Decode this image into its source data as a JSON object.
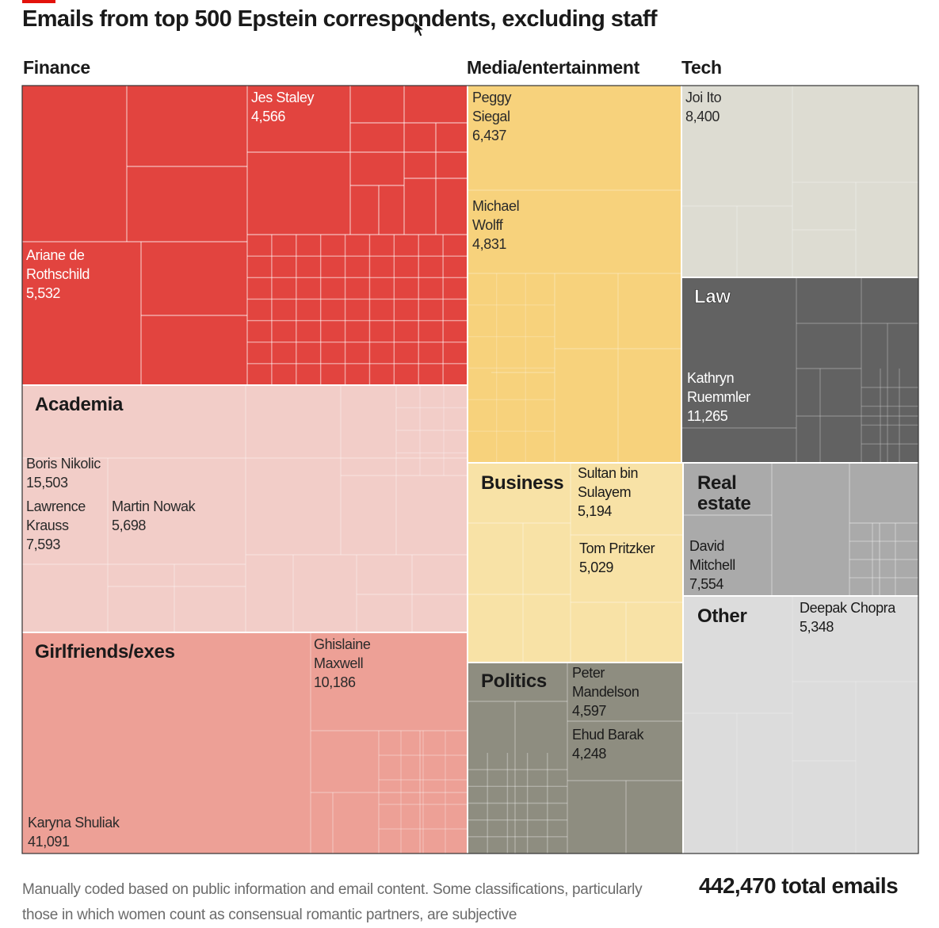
{
  "title": "Emails from top 500 Epstein correspondents, excluding staff",
  "group_headings": {
    "finance": "Finance",
    "media": "Media/entertainment",
    "tech": "Tech"
  },
  "colors": {
    "Finance": "#e2443f",
    "Academia": "#f2cdc8",
    "Girlfriends/exes": "#eda096",
    "Media/entertainment": "#f7d27c",
    "Business": "#f8e2a6",
    "Politics": "#8e8d80",
    "Tech": "#dddcd2",
    "Law": "#626262",
    "Real estate": "#aaaaaa",
    "Other": "#dcdcdc"
  },
  "chart_data": {
    "type": "treemap",
    "title": "Emails from top 500 Epstein correspondents, excluding staff",
    "total_label": "442,470 total emails",
    "categories": [
      {
        "name": "Finance",
        "highlighted": [
          {
            "name": "Jes Staley",
            "value": 4566
          },
          {
            "name": "Ariane de Rothschild",
            "value": 5532
          }
        ]
      },
      {
        "name": "Academia",
        "highlighted": [
          {
            "name": "Boris Nikolic",
            "value": 15503
          },
          {
            "name": "Lawrence Krauss",
            "value": 7593
          },
          {
            "name": "Martin Nowak",
            "value": 5698
          }
        ]
      },
      {
        "name": "Girlfriends/exes",
        "highlighted": [
          {
            "name": "Ghislaine Maxwell",
            "value": 10186
          },
          {
            "name": "Karyna Shuliak",
            "value": 41091
          }
        ]
      },
      {
        "name": "Media/entertainment",
        "highlighted": [
          {
            "name": "Peggy Siegal",
            "value": 6437
          },
          {
            "name": "Michael Wolff",
            "value": 4831
          }
        ]
      },
      {
        "name": "Business",
        "highlighted": [
          {
            "name": "Sultan bin Sulayem",
            "value": 5194
          },
          {
            "name": "Tom Pritzker",
            "value": 5029
          }
        ]
      },
      {
        "name": "Politics",
        "highlighted": [
          {
            "name": "Peter Mandelson",
            "value": 4597
          },
          {
            "name": "Ehud Barak",
            "value": 4248
          }
        ]
      },
      {
        "name": "Tech",
        "highlighted": [
          {
            "name": "Joi Ito",
            "value": 8400
          }
        ]
      },
      {
        "name": "Law",
        "highlighted": [
          {
            "name": "Kathryn Ruemmler",
            "value": 11265
          }
        ]
      },
      {
        "name": "Real estate",
        "highlighted": [
          {
            "name": "David Mitchell",
            "value": 7554
          }
        ]
      },
      {
        "name": "Other",
        "highlighted": [
          {
            "name": "Deepak Chopra",
            "value": 5348
          }
        ]
      }
    ],
    "category_labels": {
      "academia": "Academia",
      "girlfriends": "Girlfriends/exes",
      "business": "Business",
      "politics": "Politics",
      "law": "Law",
      "real_estate": [
        "Real",
        "estate"
      ],
      "other": "Other"
    },
    "person_labels": {
      "staley": [
        "Jes Staley",
        "4,566"
      ],
      "rothschild": [
        "Ariane de",
        "Rothschild",
        "5,532"
      ],
      "nikolic": [
        "Boris Nikolic",
        "15,503"
      ],
      "krauss": [
        "Lawrence",
        "Krauss",
        "7,593"
      ],
      "nowak": [
        "Martin Nowak",
        "5,698"
      ],
      "maxwell": [
        "Ghislaine",
        "Maxwell",
        "10,186"
      ],
      "shuliak": [
        "Karyna Shuliak",
        "41,091"
      ],
      "siegal": [
        "Peggy",
        "Siegal",
        "6,437"
      ],
      "wolff": [
        "Michael",
        "Wolff",
        "4,831"
      ],
      "sulayem": [
        "Sultan bin",
        "Sulayem",
        "5,194"
      ],
      "pritzker": [
        "Tom Pritzker",
        "5,029"
      ],
      "mandelson": [
        "Peter",
        "Mandelson",
        "4,597"
      ],
      "barak": [
        "Ehud Barak",
        "4,248"
      ],
      "ito": [
        "Joi Ito",
        "8,400"
      ],
      "ruemmler": [
        "Kathryn",
        "Ruemmler",
        "11,265"
      ],
      "mitchell": [
        "David",
        "Mitchell",
        "7,554"
      ],
      "chopra": [
        "Deepak Chopra",
        "5,348"
      ]
    }
  },
  "footnote": "Manually coded based on public information and email content. Some classifications, particularly those in which women count as consensual romantic partners, are subjective",
  "total": "442,470 total emails"
}
